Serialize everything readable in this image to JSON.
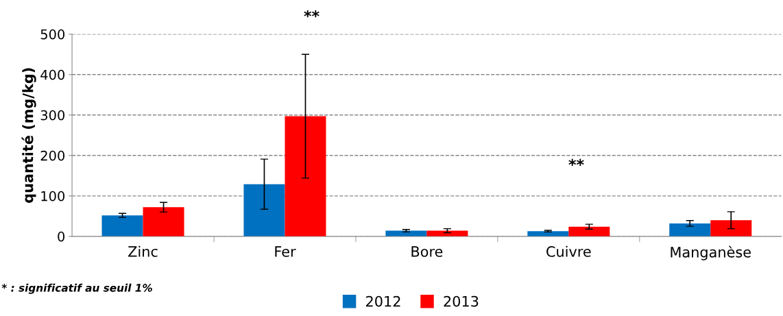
{
  "chart_data": {
    "type": "bar",
    "ylabel": "quantité (mg/kg)",
    "categories": [
      "Zinc",
      "Fer",
      "Bore",
      "Cuivre",
      "Manganèse"
    ],
    "series": [
      {
        "name": "2012",
        "color": "#0070c0",
        "values": [
          52,
          129,
          14,
          13,
          32
        ],
        "errors": [
          5,
          62,
          3,
          2,
          7
        ]
      },
      {
        "name": "2013",
        "color": "#ff0000",
        "values": [
          72,
          297,
          14,
          24,
          40
        ],
        "errors": [
          12,
          153,
          5,
          6,
          21
        ]
      }
    ],
    "ylim": [
      0,
      500
    ],
    "yticks": [
      0,
      100,
      200,
      300,
      400,
      500
    ],
    "grid": "y",
    "line_style": "dashed",
    "legend": "bottom",
    "annotations": [
      "**",
      "**",
      "* : significatif au seuil 1%"
    ]
  }
}
